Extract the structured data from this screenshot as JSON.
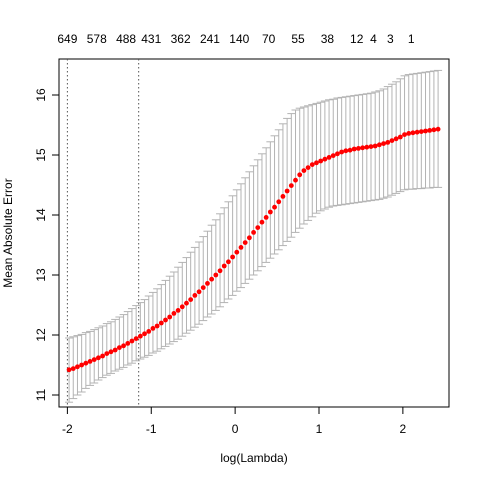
{
  "chart_data": {
    "type": "scatter",
    "xlabel": "log(Lambda)",
    "ylabel": "Mean Absolute Error",
    "xlim": [
      -2.1,
      2.55
    ],
    "ylim": [
      10.8,
      16.6
    ],
    "x_ticks": [
      -2,
      -1,
      0,
      1,
      2
    ],
    "x_tick_labels": [
      "-2",
      "-1",
      "0",
      "1",
      "2"
    ],
    "y_ticks": [
      11,
      12,
      13,
      14,
      15,
      16
    ],
    "y_tick_labels": [
      "11",
      "12",
      "13",
      "14",
      "15",
      "16"
    ],
    "top_axis": {
      "label": "",
      "ticks": [
        -2.0,
        -1.65,
        -1.3,
        -1.0,
        -0.65,
        -0.3,
        0.05,
        0.4,
        0.75,
        1.1,
        1.45,
        1.65,
        1.85,
        2.1
      ],
      "tick_labels": [
        "649",
        "578",
        "488",
        "431",
        "362",
        "241",
        "140",
        "70",
        "55",
        "38",
        "12",
        "4",
        "3",
        "1"
      ]
    },
    "reference_lines_x": [
      -2.0,
      -1.15
    ],
    "colors": {
      "points": "#ff0000",
      "error_bars": "#b3b3b3",
      "reference_lines": "#555555"
    },
    "series": [
      {
        "x": [
          -1.98,
          -1.93,
          -1.88,
          -1.83,
          -1.78,
          -1.73,
          -1.68,
          -1.63,
          -1.58,
          -1.53,
          -1.48,
          -1.43,
          -1.38,
          -1.33,
          -1.28,
          -1.23,
          -1.18,
          -1.13,
          -1.08,
          -1.03,
          -0.98,
          -0.93,
          -0.88,
          -0.83,
          -0.78,
          -0.73,
          -0.68,
          -0.63,
          -0.58,
          -0.53,
          -0.48,
          -0.43,
          -0.38,
          -0.33,
          -0.28,
          -0.23,
          -0.18,
          -0.13,
          -0.08,
          -0.03,
          0.02,
          0.07,
          0.12,
          0.17,
          0.22,
          0.27,
          0.32,
          0.37,
          0.42,
          0.47,
          0.52,
          0.57,
          0.62,
          0.67,
          0.72,
          0.77,
          0.82,
          0.87,
          0.92,
          0.97,
          1.02,
          1.07,
          1.12,
          1.17,
          1.22,
          1.27,
          1.32,
          1.37,
          1.42,
          1.47,
          1.52,
          1.57,
          1.62,
          1.67,
          1.72,
          1.77,
          1.82,
          1.87,
          1.92,
          1.97,
          2.02,
          2.07,
          2.12,
          2.17,
          2.22,
          2.27,
          2.32,
          2.37,
          2.42
        ],
        "y": [
          11.42,
          11.44,
          11.47,
          11.5,
          11.53,
          11.56,
          11.59,
          11.62,
          11.65,
          11.69,
          11.72,
          11.75,
          11.79,
          11.82,
          11.86,
          11.9,
          11.94,
          11.98,
          12.02,
          12.06,
          12.11,
          12.15,
          12.2,
          12.25,
          12.3,
          12.36,
          12.41,
          12.47,
          12.53,
          12.59,
          12.66,
          12.72,
          12.79,
          12.86,
          12.93,
          13.0,
          13.07,
          13.15,
          13.22,
          13.3,
          13.38,
          13.46,
          13.54,
          13.62,
          13.71,
          13.79,
          13.88,
          13.96,
          14.05,
          14.13,
          14.22,
          14.31,
          14.4,
          14.49,
          14.58,
          14.67,
          14.74,
          14.79,
          14.84,
          14.87,
          14.9,
          14.93,
          14.96,
          14.99,
          15.02,
          15.05,
          15.07,
          15.08,
          15.1,
          15.11,
          15.12,
          15.13,
          15.14,
          15.15,
          15.17,
          15.19,
          15.21,
          15.24,
          15.27,
          15.3,
          15.34,
          15.36,
          15.37,
          15.38,
          15.39,
          15.4,
          15.41,
          15.42,
          15.43
        ],
        "lower": [
          10.88,
          10.94,
          11.0,
          11.05,
          11.11,
          11.16,
          11.2,
          11.25,
          11.29,
          11.33,
          11.36,
          11.4,
          11.43,
          11.46,
          11.5,
          11.53,
          11.57,
          11.6,
          11.63,
          11.66,
          11.7,
          11.73,
          11.77,
          11.81,
          11.85,
          11.89,
          11.93,
          11.98,
          12.03,
          12.08,
          12.13,
          12.18,
          12.24,
          12.3,
          12.35,
          12.41,
          12.47,
          12.54,
          12.6,
          12.66,
          12.73,
          12.79,
          12.86,
          12.93,
          13.0,
          13.07,
          13.14,
          13.21,
          13.28,
          13.35,
          13.42,
          13.49,
          13.56,
          13.63,
          13.71,
          13.78,
          13.85,
          13.91,
          13.97,
          14.03,
          14.07,
          14.1,
          14.13,
          14.15,
          14.16,
          14.17,
          14.18,
          14.19,
          14.2,
          14.21,
          14.22,
          14.23,
          14.24,
          14.25,
          14.26,
          14.28,
          14.3,
          14.33,
          14.36,
          14.39,
          14.42,
          14.43,
          14.43,
          14.44,
          14.44,
          14.45,
          14.45,
          14.46,
          14.46
        ],
        "upper": [
          11.95,
          11.97,
          11.99,
          12.01,
          12.04,
          12.06,
          12.09,
          12.12,
          12.15,
          12.19,
          12.22,
          12.26,
          12.3,
          12.34,
          12.39,
          12.44,
          12.49,
          12.54,
          12.59,
          12.65,
          12.71,
          12.77,
          12.84,
          12.91,
          12.98,
          13.05,
          13.13,
          13.21,
          13.29,
          13.38,
          13.46,
          13.55,
          13.64,
          13.73,
          13.83,
          13.92,
          14.02,
          14.12,
          14.22,
          14.32,
          14.42,
          14.52,
          14.62,
          14.72,
          14.82,
          14.92,
          15.02,
          15.12,
          15.22,
          15.32,
          15.42,
          15.52,
          15.61,
          15.69,
          15.75,
          15.78,
          15.8,
          15.82,
          15.84,
          15.86,
          15.88,
          15.9,
          15.92,
          15.93,
          15.95,
          15.96,
          15.97,
          15.98,
          15.99,
          16.0,
          16.01,
          16.02,
          16.03,
          16.05,
          16.07,
          16.1,
          16.14,
          16.18,
          16.22,
          16.27,
          16.32,
          16.34,
          16.35,
          16.36,
          16.37,
          16.38,
          16.39,
          16.4,
          16.41
        ]
      }
    ]
  }
}
